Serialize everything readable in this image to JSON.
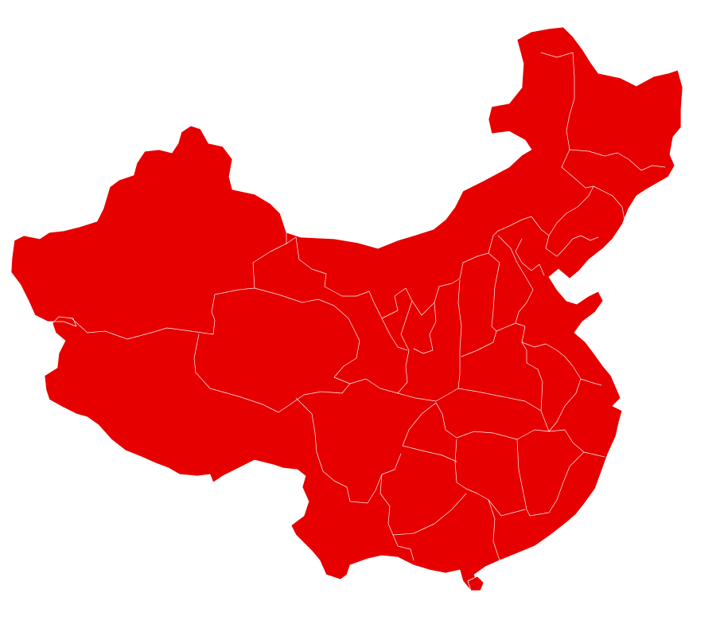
{
  "map": {
    "fill_color": "#e60000",
    "border_color": "#ffffff",
    "background_color": "#ffffff"
  }
}
